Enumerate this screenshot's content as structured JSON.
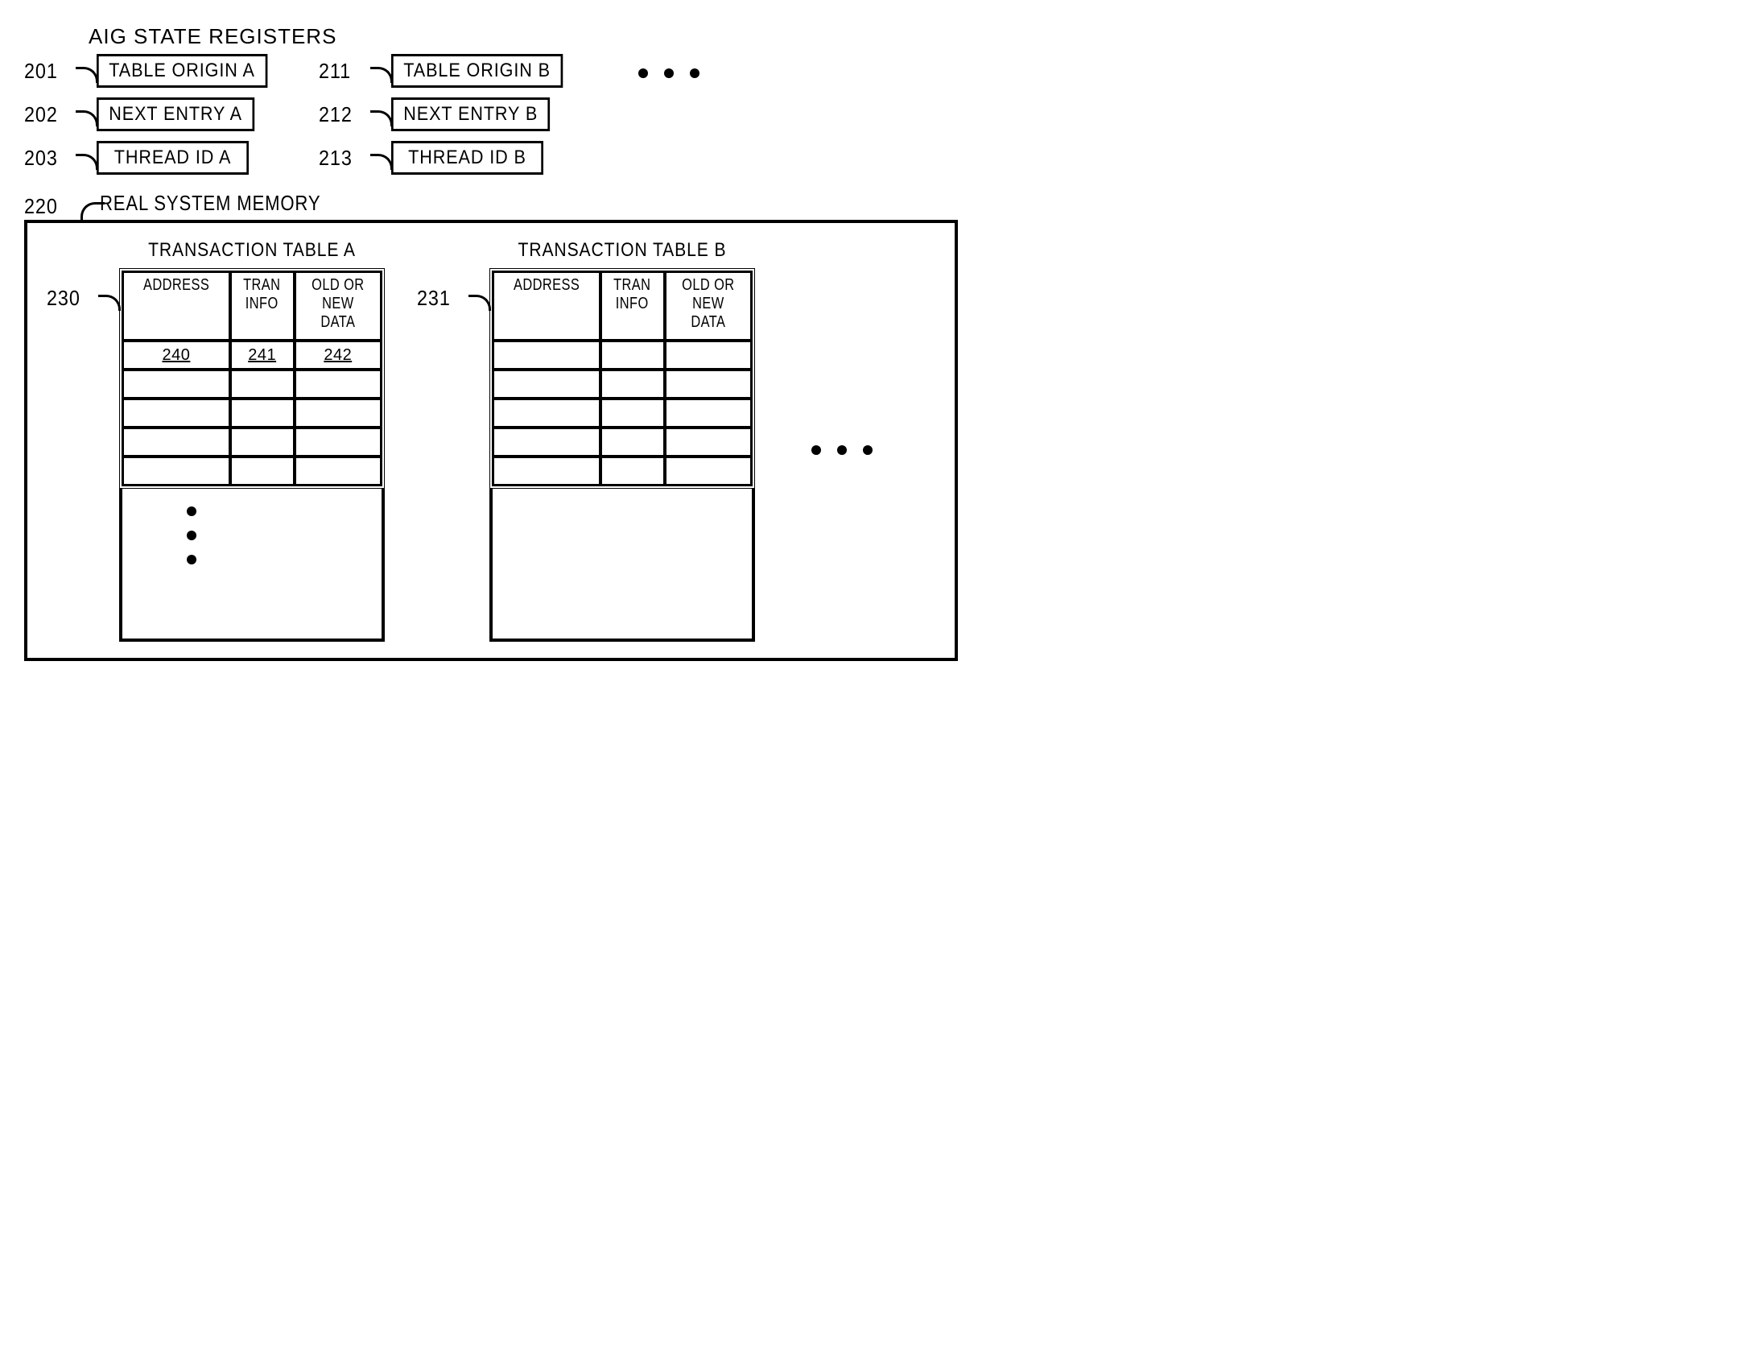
{
  "titles": {
    "registers": "AIG STATE REGISTERS",
    "memory": "REAL SYSTEM MEMORY"
  },
  "registersA": {
    "refs": [
      "201",
      "202",
      "203"
    ],
    "labels": [
      "TABLE ORIGIN A",
      "NEXT ENTRY A",
      "THREAD ID A"
    ]
  },
  "registersB": {
    "refs": [
      "211",
      "212",
      "213"
    ],
    "labels": [
      "TABLE ORIGIN B",
      "NEXT ENTRY B",
      "THREAD ID B"
    ]
  },
  "memory": {
    "ref": "220",
    "tableA": {
      "title": "TRANSACTION TABLE A",
      "ref": "230",
      "headers": [
        "ADDRESS",
        "TRAN INFO",
        "OLD OR NEW DATA"
      ],
      "firstRow": [
        "240",
        "241",
        "242"
      ],
      "emptyRows": 4,
      "hasVerticalEllipsis": true
    },
    "tableB": {
      "title": "TRANSACTION TABLE B",
      "ref": "231",
      "headers": [
        "ADDRESS",
        "TRAN INFO",
        "OLD OR NEW DATA"
      ],
      "firstRow": [
        "",
        "",
        ""
      ],
      "emptyRows": 4,
      "hasVerticalEllipsis": false
    }
  },
  "style": {
    "lineColor": "#000000",
    "background": "#ffffff",
    "dotSize": 12,
    "borderWidth": 3
  }
}
